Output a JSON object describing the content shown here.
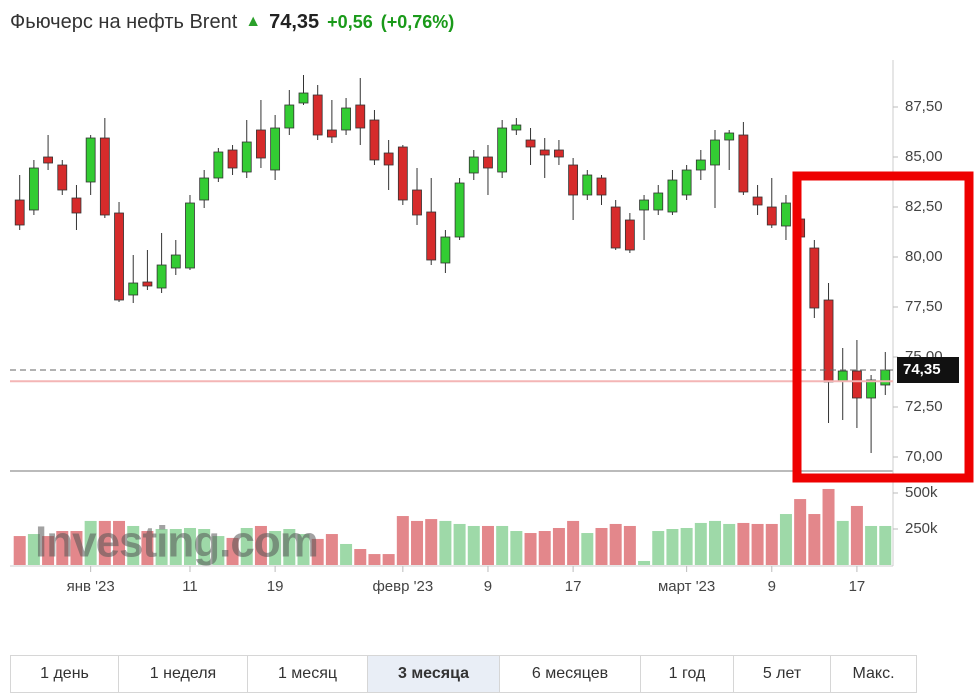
{
  "chart_data": {
    "type": "candlestick",
    "title": "Фьючерс на нефть Brent",
    "quote": {
      "value": 74.35,
      "label": "74,35"
    },
    "change": "+0,56",
    "change_pct": "(+0,76%)",
    "prev_close": 73.79,
    "watermark": "Investing.com",
    "categories": [
      null,
      null,
      null,
      null,
      null,
      "янв '23",
      null,
      null,
      null,
      null,
      null,
      null,
      "11",
      null,
      null,
      null,
      null,
      null,
      "19",
      null,
      null,
      null,
      null,
      null,
      null,
      null,
      null,
      "февр '23",
      null,
      null,
      null,
      null,
      null,
      "9",
      null,
      null,
      null,
      null,
      null,
      "17",
      null,
      null,
      null,
      null,
      null,
      null,
      null,
      "март '23",
      null,
      null,
      null,
      null,
      null,
      "9",
      null,
      null,
      null,
      null,
      null,
      "17",
      null,
      null
    ],
    "open": [
      82.85,
      82.35,
      85.0,
      84.6,
      82.95,
      83.75,
      85.95,
      82.2,
      78.1,
      78.75,
      78.45,
      79.45,
      79.45,
      82.85,
      83.95,
      85.35,
      84.25,
      86.35,
      84.35,
      86.45,
      87.7,
      88.1,
      86.35,
      86.35,
      87.6,
      86.85,
      85.2,
      85.5,
      83.35,
      82.25,
      79.7,
      81.0,
      84.2,
      85.0,
      84.25,
      86.35,
      85.85,
      85.35,
      85.35,
      84.6,
      83.1,
      83.95,
      82.5,
      81.85,
      82.35,
      82.35,
      82.25,
      83.1,
      84.35,
      84.6,
      85.85,
      86.1,
      83.0,
      82.5,
      81.55,
      81.9,
      80.45,
      77.85,
      73.8,
      74.3,
      72.95,
      73.6
    ],
    "high": [
      84.1,
      84.85,
      86.1,
      84.85,
      83.6,
      86.1,
      86.95,
      82.75,
      80.1,
      80.35,
      81.2,
      80.85,
      83.1,
      84.35,
      85.45,
      85.6,
      86.85,
      87.85,
      87.1,
      88.35,
      89.1,
      88.6,
      87.85,
      87.95,
      88.95,
      87.35,
      85.85,
      85.6,
      84.45,
      83.95,
      81.35,
      83.95,
      85.35,
      85.6,
      86.85,
      86.95,
      86.45,
      85.95,
      85.85,
      84.95,
      84.35,
      84.1,
      82.85,
      82.2,
      83.1,
      83.6,
      84.35,
      84.6,
      85.35,
      86.35,
      86.35,
      86.75,
      83.6,
      83.95,
      83.1,
      82.3,
      80.85,
      78.7,
      75.45,
      75.85,
      74.1,
      75.25
    ],
    "low": [
      81.35,
      82.1,
      84.35,
      83.1,
      81.35,
      83.1,
      81.95,
      77.75,
      77.7,
      78.35,
      78.2,
      79.1,
      79.35,
      82.45,
      83.75,
      84.1,
      83.95,
      84.45,
      83.85,
      86.1,
      87.6,
      85.85,
      85.7,
      86.1,
      85.6,
      84.6,
      83.35,
      82.6,
      81.6,
      79.6,
      79.2,
      80.85,
      83.85,
      83.1,
      83.95,
      86.1,
      84.6,
      83.95,
      84.6,
      81.85,
      82.85,
      82.6,
      80.35,
      80.2,
      80.85,
      82.1,
      82.1,
      82.85,
      83.85,
      82.45,
      84.35,
      83.1,
      82.1,
      81.45,
      80.85,
      80.6,
      76.95,
      71.7,
      71.85,
      71.45,
      70.2,
      73.1
    ],
    "close": [
      81.6,
      84.45,
      84.7,
      83.35,
      82.2,
      85.95,
      82.1,
      77.85,
      78.7,
      78.55,
      79.6,
      80.1,
      82.7,
      83.95,
      85.25,
      84.45,
      85.75,
      84.95,
      86.45,
      87.6,
      88.2,
      86.1,
      86.0,
      87.45,
      86.45,
      84.85,
      84.6,
      82.85,
      82.1,
      79.85,
      81.0,
      83.7,
      85.0,
      84.45,
      86.45,
      86.6,
      85.5,
      85.1,
      85.0,
      83.1,
      84.1,
      83.1,
      80.45,
      80.35,
      82.85,
      83.2,
      83.85,
      84.35,
      84.85,
      85.85,
      86.2,
      83.25,
      82.6,
      81.6,
      82.7,
      81.0,
      77.45,
      73.75,
      74.3,
      72.95,
      73.85,
      74.35
    ],
    "volume": [
      201000,
      215000,
      201000,
      236000,
      236000,
      306000,
      306000,
      306000,
      271000,
      236000,
      250000,
      250000,
      257000,
      250000,
      201000,
      188000,
      257000,
      271000,
      236000,
      250000,
      215000,
      181000,
      215000,
      146000,
      111000,
      76000,
      76000,
      340000,
      306000,
      319000,
      306000,
      285000,
      271000,
      271000,
      271000,
      236000,
      222000,
      236000,
      257000,
      306000,
      222000,
      257000,
      285000,
      271000,
      28000,
      236000,
      250000,
      257000,
      292000,
      306000,
      285000,
      292000,
      285000,
      285000,
      354000,
      458000,
      354000,
      528000,
      306000,
      410000,
      271000,
      271000
    ],
    "ylim": [
      69.35,
      89.85
    ],
    "yticks": [
      {
        "value": 70,
        "label": "70,00"
      },
      {
        "value": 72.5,
        "label": "72,50"
      },
      {
        "value": 75,
        "label": "75,00"
      },
      {
        "value": 77.5,
        "label": "77,50"
      },
      {
        "value": 80,
        "label": "80,00"
      },
      {
        "value": 82.5,
        "label": "82,50"
      },
      {
        "value": 85,
        "label": "85,00"
      },
      {
        "value": 87.5,
        "label": "87,50"
      }
    ],
    "y2lim": [
      0,
      625000
    ],
    "y2ticks": [
      {
        "value": 250000,
        "label": "250k"
      },
      {
        "value": 500000,
        "label": "500k"
      }
    ],
    "up_color": "#33cc33",
    "down_color": "#d62b2b",
    "volume_up_color": "#9ed9a8",
    "volume_down_color": "#e3878b",
    "grid": false
  },
  "periods": [
    "1 день",
    "1 неделя",
    "1 месяц",
    "3 месяца",
    "6 месяцев",
    "1 год",
    "5 лет",
    "Макс."
  ],
  "active_period": 3
}
